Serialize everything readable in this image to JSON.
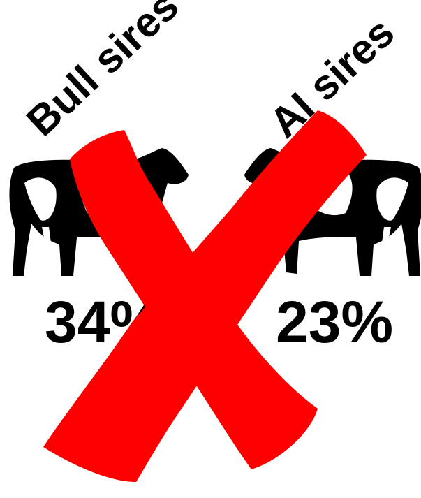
{
  "left": {
    "label": "Bull sires",
    "value": "34%"
  },
  "right": {
    "label": "AI sires",
    "value": "23%"
  }
}
